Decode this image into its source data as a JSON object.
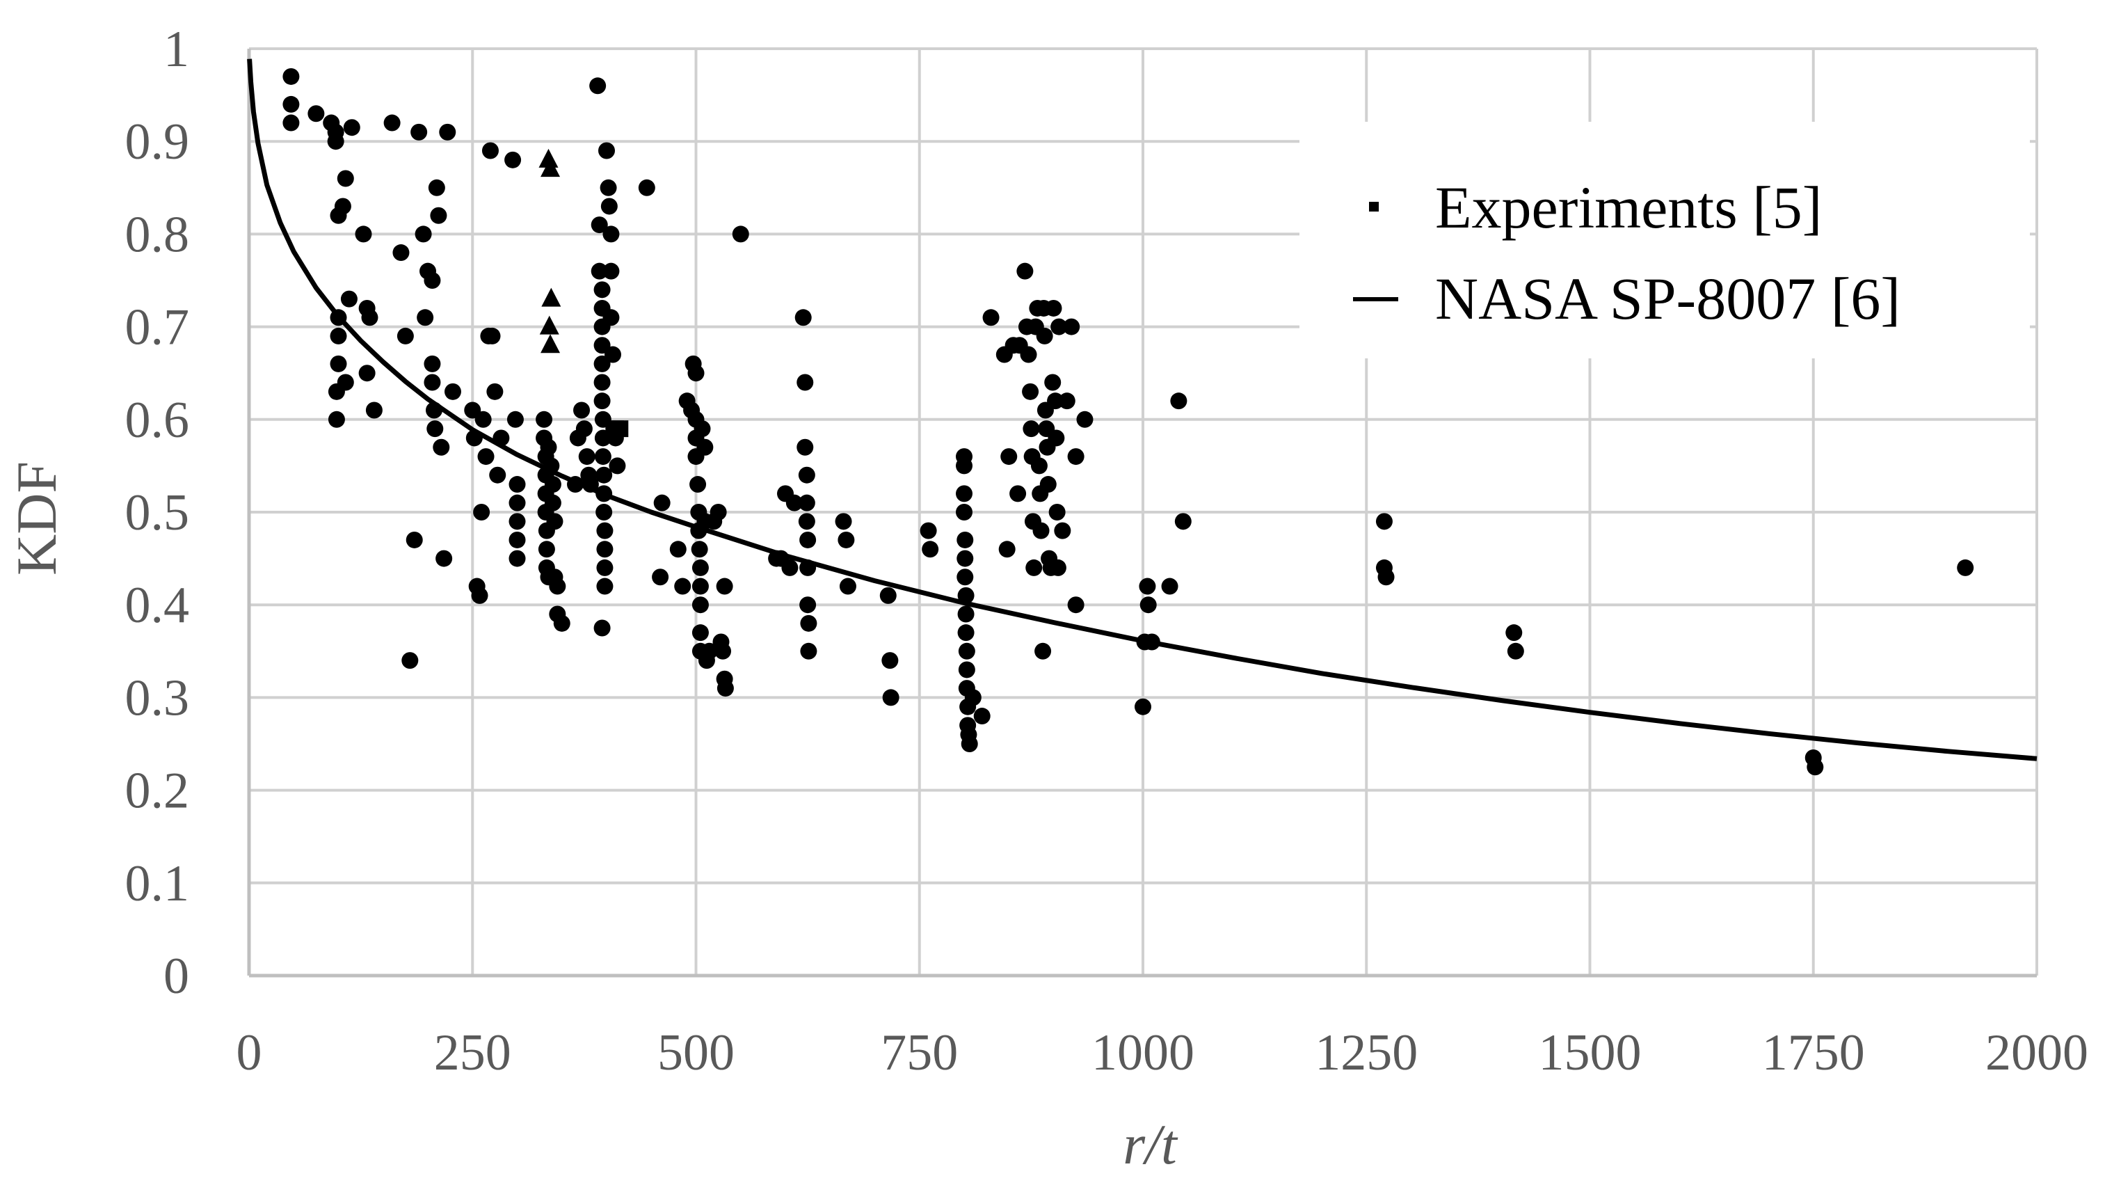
{
  "chart_data": {
    "type": "scatter",
    "xlabel": "r/t",
    "ylabel": "KDF",
    "xlim": [
      0,
      2000
    ],
    "ylim": [
      0,
      1
    ],
    "x_ticks": [
      0,
      250,
      500,
      750,
      1000,
      1250,
      1500,
      1750,
      2000
    ],
    "y_ticks": [
      0,
      0.1,
      0.2,
      0.3,
      0.4,
      0.5,
      0.6,
      0.7,
      0.8,
      0.9,
      1
    ],
    "y_tick_labels": [
      "0",
      "0.1",
      "0.2",
      "0.3",
      "0.4",
      "0.5",
      "0.6",
      "0.7",
      "0.8",
      "0.9",
      "1"
    ],
    "grid": true,
    "legend_position": "top-right",
    "colors": {
      "marker": "#000000",
      "curve": "#000000",
      "grid": "#d0d0d0",
      "axis": "#bfbfbf",
      "text": "#595959"
    },
    "series": [
      {
        "name": "Experiments [5]",
        "kind": "scatter",
        "marker": "circle",
        "points": [
          [
            47,
            0.97
          ],
          [
            47,
            0.94
          ],
          [
            47,
            0.92
          ],
          [
            75,
            0.93
          ],
          [
            92,
            0.92
          ],
          [
            97,
            0.91
          ],
          [
            97,
            0.9
          ],
          [
            115,
            0.915
          ],
          [
            100,
            0.82
          ],
          [
            105,
            0.83
          ],
          [
            108,
            0.86
          ],
          [
            100,
            0.71
          ],
          [
            100,
            0.69
          ],
          [
            100,
            0.66
          ],
          [
            98,
            0.63
          ],
          [
            98,
            0.6
          ],
          [
            108,
            0.64
          ],
          [
            112,
            0.73
          ],
          [
            128,
            0.8
          ],
          [
            132,
            0.72
          ],
          [
            135,
            0.71
          ],
          [
            132,
            0.65
          ],
          [
            140,
            0.61
          ],
          [
            160,
            0.92
          ],
          [
            170,
            0.78
          ],
          [
            175,
            0.69
          ],
          [
            180,
            0.34
          ],
          [
            185,
            0.47
          ],
          [
            190,
            0.91
          ],
          [
            195,
            0.8
          ],
          [
            197,
            0.71
          ],
          [
            200,
            0.76
          ],
          [
            205,
            0.75
          ],
          [
            205,
            0.66
          ],
          [
            205,
            0.64
          ],
          [
            207,
            0.61
          ],
          [
            208,
            0.59
          ],
          [
            210,
            0.85
          ],
          [
            212,
            0.82
          ],
          [
            215,
            0.57
          ],
          [
            218,
            0.45
          ],
          [
            222,
            0.91
          ],
          [
            228,
            0.63
          ],
          [
            250,
            0.61
          ],
          [
            252,
            0.58
          ],
          [
            255,
            0.42
          ],
          [
            258,
            0.41
          ],
          [
            260,
            0.5
          ],
          [
            262,
            0.6
          ],
          [
            265,
            0.56
          ],
          [
            268,
            0.69
          ],
          [
            270,
            0.89
          ],
          [
            272,
            0.69
          ],
          [
            275,
            0.63
          ],
          [
            278,
            0.54
          ],
          [
            282,
            0.58
          ],
          [
            295,
            0.88
          ],
          [
            298,
            0.6
          ],
          [
            300,
            0.53
          ],
          [
            300,
            0.51
          ],
          [
            300,
            0.49
          ],
          [
            300,
            0.47
          ],
          [
            300,
            0.45
          ],
          [
            330,
            0.6
          ],
          [
            330,
            0.58
          ],
          [
            332,
            0.56
          ],
          [
            332,
            0.54
          ],
          [
            332,
            0.52
          ],
          [
            332,
            0.5
          ],
          [
            333,
            0.48
          ],
          [
            333,
            0.46
          ],
          [
            333,
            0.44
          ],
          [
            335,
            0.43
          ],
          [
            335,
            0.57
          ],
          [
            338,
            0.55
          ],
          [
            340,
            0.53
          ],
          [
            340,
            0.51
          ],
          [
            342,
            0.49
          ],
          [
            342,
            0.43
          ],
          [
            345,
            0.42
          ],
          [
            345,
            0.39
          ],
          [
            350,
            0.38
          ],
          [
            365,
            0.53
          ],
          [
            368,
            0.58
          ],
          [
            372,
            0.61
          ],
          [
            375,
            0.59
          ],
          [
            378,
            0.56
          ],
          [
            380,
            0.54
          ],
          [
            382,
            0.53
          ],
          [
            390,
            0.96
          ],
          [
            392,
            0.81
          ],
          [
            392,
            0.76
          ],
          [
            395,
            0.74
          ],
          [
            395,
            0.72
          ],
          [
            395,
            0.7
          ],
          [
            395,
            0.68
          ],
          [
            395,
            0.66
          ],
          [
            395,
            0.64
          ],
          [
            395,
            0.62
          ],
          [
            396,
            0.6
          ],
          [
            396,
            0.58
          ],
          [
            396,
            0.56
          ],
          [
            397,
            0.54
          ],
          [
            397,
            0.52
          ],
          [
            397,
            0.5
          ],
          [
            398,
            0.48
          ],
          [
            398,
            0.46
          ],
          [
            398,
            0.44
          ],
          [
            398,
            0.42
          ],
          [
            395,
            0.375
          ],
          [
            400,
            0.89
          ],
          [
            402,
            0.85
          ],
          [
            403,
            0.83
          ],
          [
            405,
            0.8
          ],
          [
            405,
            0.76
          ],
          [
            405,
            0.71
          ],
          [
            407,
            0.67
          ],
          [
            408,
            0.59
          ],
          [
            410,
            0.58
          ],
          [
            412,
            0.55
          ],
          [
            445,
            0.85
          ],
          [
            460,
            0.43
          ],
          [
            462,
            0.51
          ],
          [
            480,
            0.46
          ],
          [
            485,
            0.42
          ],
          [
            490,
            0.62
          ],
          [
            495,
            0.61
          ],
          [
            497,
            0.66
          ],
          [
            500,
            0.65
          ],
          [
            500,
            0.6
          ],
          [
            500,
            0.58
          ],
          [
            500,
            0.56
          ],
          [
            502,
            0.53
          ],
          [
            503,
            0.5
          ],
          [
            503,
            0.48
          ],
          [
            504,
            0.46
          ],
          [
            505,
            0.44
          ],
          [
            505,
            0.42
          ],
          [
            505,
            0.4
          ],
          [
            505,
            0.37
          ],
          [
            505,
            0.35
          ],
          [
            507,
            0.59
          ],
          [
            510,
            0.57
          ],
          [
            510,
            0.49
          ],
          [
            512,
            0.34
          ],
          [
            515,
            0.35
          ],
          [
            520,
            0.49
          ],
          [
            525,
            0.5
          ],
          [
            528,
            0.36
          ],
          [
            530,
            0.35
          ],
          [
            532,
            0.42
          ],
          [
            532,
            0.32
          ],
          [
            533,
            0.31
          ],
          [
            550,
            0.8
          ],
          [
            590,
            0.45
          ],
          [
            595,
            0.45
          ],
          [
            600,
            0.52
          ],
          [
            605,
            0.44
          ],
          [
            610,
            0.51
          ],
          [
            620,
            0.71
          ],
          [
            622,
            0.64
          ],
          [
            622,
            0.57
          ],
          [
            624,
            0.54
          ],
          [
            624,
            0.51
          ],
          [
            624,
            0.49
          ],
          [
            625,
            0.47
          ],
          [
            625,
            0.44
          ],
          [
            625,
            0.4
          ],
          [
            626,
            0.38
          ],
          [
            626,
            0.35
          ],
          [
            665,
            0.49
          ],
          [
            668,
            0.47
          ],
          [
            670,
            0.42
          ],
          [
            715,
            0.41
          ],
          [
            717,
            0.34
          ],
          [
            718,
            0.3
          ],
          [
            760,
            0.48
          ],
          [
            762,
            0.46
          ],
          [
            800,
            0.56
          ],
          [
            800,
            0.55
          ],
          [
            800,
            0.52
          ],
          [
            800,
            0.5
          ],
          [
            801,
            0.47
          ],
          [
            801,
            0.45
          ],
          [
            801,
            0.43
          ],
          [
            802,
            0.41
          ],
          [
            802,
            0.39
          ],
          [
            802,
            0.37
          ],
          [
            803,
            0.35
          ],
          [
            803,
            0.33
          ],
          [
            803,
            0.31
          ],
          [
            804,
            0.29
          ],
          [
            804,
            0.27
          ],
          [
            805,
            0.26
          ],
          [
            806,
            0.25
          ],
          [
            810,
            0.3
          ],
          [
            820,
            0.28
          ],
          [
            830,
            0.71
          ],
          [
            845,
            0.67
          ],
          [
            848,
            0.46
          ],
          [
            850,
            0.56
          ],
          [
            855,
            0.68
          ],
          [
            860,
            0.52
          ],
          [
            862,
            0.68
          ],
          [
            868,
            0.76
          ],
          [
            870,
            0.7
          ],
          [
            872,
            0.67
          ],
          [
            874,
            0.63
          ],
          [
            875,
            0.59
          ],
          [
            876,
            0.56
          ],
          [
            877,
            0.49
          ],
          [
            878,
            0.44
          ],
          [
            880,
            0.7
          ],
          [
            882,
            0.72
          ],
          [
            884,
            0.55
          ],
          [
            885,
            0.52
          ],
          [
            886,
            0.48
          ],
          [
            888,
            0.35
          ],
          [
            889,
            0.72
          ],
          [
            890,
            0.69
          ],
          [
            891,
            0.61
          ],
          [
            892,
            0.59
          ],
          [
            893,
            0.57
          ],
          [
            894,
            0.53
          ],
          [
            895,
            0.45
          ],
          [
            897,
            0.44
          ],
          [
            899,
            0.64
          ],
          [
            900,
            0.72
          ],
          [
            902,
            0.62
          ],
          [
            903,
            0.58
          ],
          [
            904,
            0.5
          ],
          [
            905,
            0.44
          ],
          [
            906,
            0.7
          ],
          [
            910,
            0.48
          ],
          [
            915,
            0.62
          ],
          [
            920,
            0.7
          ],
          [
            925,
            0.56
          ],
          [
            925,
            0.4
          ],
          [
            935,
            0.6
          ],
          [
            1000,
            0.29
          ],
          [
            1002,
            0.36
          ],
          [
            1005,
            0.42
          ],
          [
            1006,
            0.4
          ],
          [
            1010,
            0.36
          ],
          [
            1030,
            0.42
          ],
          [
            1040,
            0.62
          ],
          [
            1045,
            0.49
          ],
          [
            1270,
            0.49
          ],
          [
            1270,
            0.44
          ],
          [
            1272,
            0.43
          ],
          [
            1415,
            0.37
          ],
          [
            1417,
            0.35
          ],
          [
            1750,
            0.235
          ],
          [
            1752,
            0.225
          ],
          [
            1920,
            0.44
          ]
        ]
      },
      {
        "name": "",
        "kind": "scatter",
        "marker": "triangle",
        "points": [
          [
            335,
            0.88
          ],
          [
            337,
            0.87
          ],
          [
            338,
            0.73
          ],
          [
            336,
            0.7
          ],
          [
            337,
            0.68
          ]
        ]
      },
      {
        "name": "",
        "kind": "scatter",
        "marker": "square",
        "points": [
          [
            410,
            0.59
          ],
          [
            415,
            0.59
          ]
        ]
      },
      {
        "name": "NASA SP-8007 [6]",
        "kind": "line",
        "points": [
          [
            0.5,
            0.989
          ],
          [
            2,
            0.964
          ],
          [
            5,
            0.932
          ],
          [
            10,
            0.898
          ],
          [
            20,
            0.853
          ],
          [
            35,
            0.812
          ],
          [
            50,
            0.781
          ],
          [
            75,
            0.742
          ],
          [
            100,
            0.711
          ],
          [
            125,
            0.685
          ],
          [
            150,
            0.662
          ],
          [
            175,
            0.641
          ],
          [
            200,
            0.622
          ],
          [
            250,
            0.589
          ],
          [
            300,
            0.562
          ],
          [
            350,
            0.539
          ],
          [
            400,
            0.518
          ],
          [
            450,
            0.5
          ],
          [
            500,
            0.484
          ],
          [
            600,
            0.453
          ],
          [
            700,
            0.426
          ],
          [
            800,
            0.402
          ],
          [
            900,
            0.381
          ],
          [
            1000,
            0.361
          ],
          [
            1100,
            0.343
          ],
          [
            1200,
            0.326
          ],
          [
            1300,
            0.311
          ],
          [
            1400,
            0.297
          ],
          [
            1500,
            0.284
          ],
          [
            1600,
            0.272
          ],
          [
            1700,
            0.261
          ],
          [
            1800,
            0.251
          ],
          [
            1900,
            0.242
          ],
          [
            2000,
            0.234
          ]
        ]
      }
    ]
  }
}
